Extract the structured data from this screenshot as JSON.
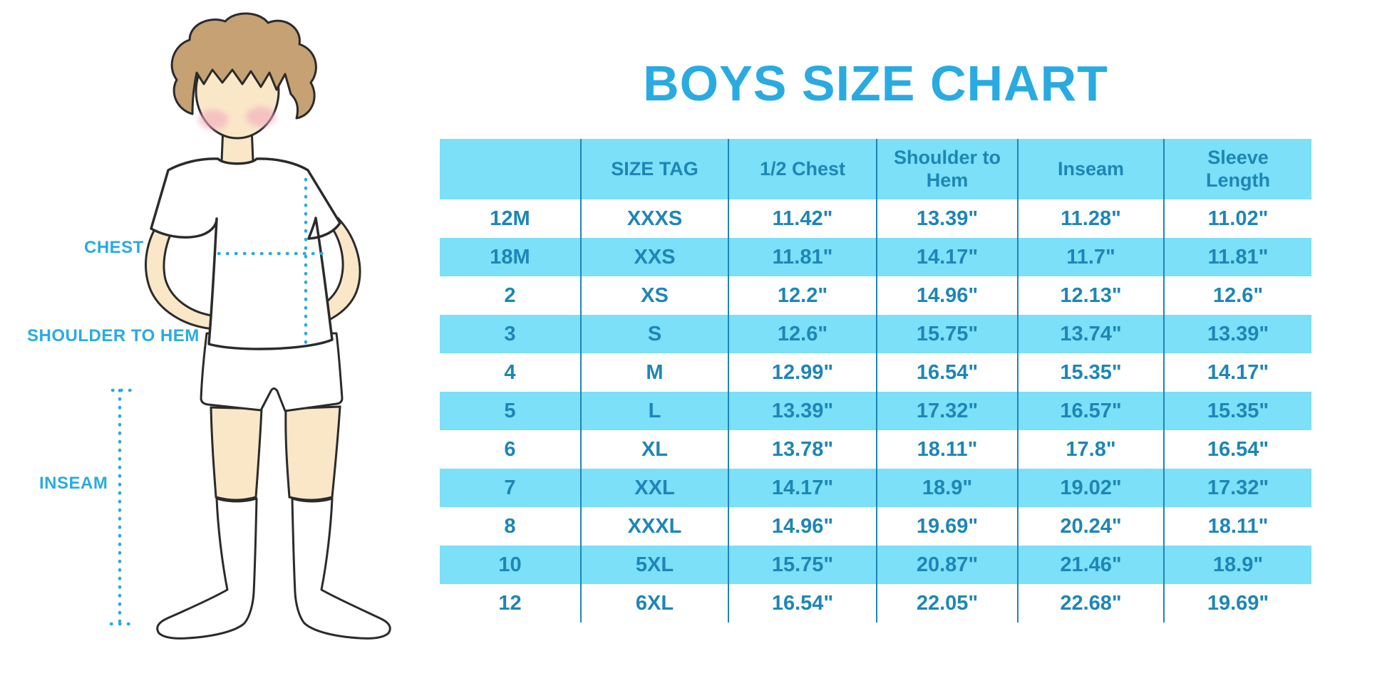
{
  "title": "BOYS SIZE CHART",
  "figure": {
    "labels": {
      "chest": "CHEST",
      "shoulder_to_hem": "SHOULDER TO HEM",
      "inseam": "INSEAM"
    }
  },
  "colors": {
    "accent_blue": "#29ABE2",
    "table_text": "#1E86B6",
    "divider": "#1E86B6",
    "row_highlight": "#7BE0F8",
    "skin": "#FAE7C8",
    "hair": "#C5A173",
    "blush": "#F2A9BE"
  },
  "chart_data": {
    "type": "table",
    "title": "BOYS SIZE CHART",
    "columns": [
      "",
      "SIZE TAG",
      "1/2 Chest",
      "Shoulder to Hem",
      "Inseam",
      "Sleeve Length"
    ],
    "rows": [
      [
        "12M",
        "XXXS",
        "11.42\"",
        "13.39\"",
        "11.28\"",
        "11.02\""
      ],
      [
        "18M",
        "XXS",
        "11.81\"",
        "14.17\"",
        "11.7\"",
        "11.81\""
      ],
      [
        "2",
        "XS",
        "12.2\"",
        "14.96\"",
        "12.13\"",
        "12.6\""
      ],
      [
        "3",
        "S",
        "12.6\"",
        "15.75\"",
        "13.74\"",
        "13.39\""
      ],
      [
        "4",
        "M",
        "12.99\"",
        "16.54\"",
        "15.35\"",
        "14.17\""
      ],
      [
        "5",
        "L",
        "13.39\"",
        "17.32\"",
        "16.57\"",
        "15.35\""
      ],
      [
        "6",
        "XL",
        "13.78\"",
        "18.11\"",
        "17.8\"",
        "16.54\""
      ],
      [
        "7",
        "XXL",
        "14.17\"",
        "18.9\"",
        "19.02\"",
        "17.32\""
      ],
      [
        "8",
        "XXXL",
        "14.96\"",
        "19.69\"",
        "20.24\"",
        "18.11\""
      ],
      [
        "10",
        "5XL",
        "15.75\"",
        "20.87\"",
        "21.46\"",
        "18.9\""
      ],
      [
        "12",
        "6XL",
        "16.54\"",
        "22.05\"",
        "22.68\"",
        "19.69\""
      ]
    ],
    "units": "inches",
    "layout": {
      "grid": "vertical column dividers only",
      "row_highlight_pattern": "header and alternating rows filled light cyan"
    }
  }
}
